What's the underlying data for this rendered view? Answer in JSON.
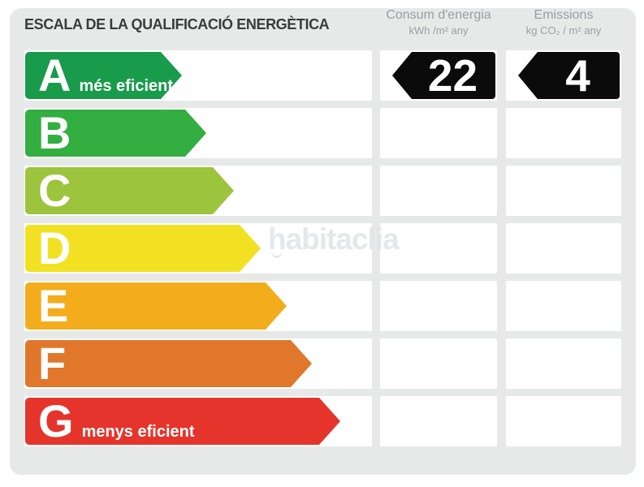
{
  "title": "ESCALA DE LA QUALIFICACIÓ ENERGÈTICA",
  "columns": {
    "consum": {
      "title": "Consum d'energia",
      "unit": "kWh /m²  any"
    },
    "emissions": {
      "title": "Emissions",
      "unit": "kg CO₂ / m²  any"
    }
  },
  "ratings": [
    {
      "grade": "A",
      "label": "més eficient",
      "color": "#189B4A",
      "arrow_width": 193
    },
    {
      "grade": "B",
      "label": "",
      "color": "#33AE41",
      "arrow_width": 223
    },
    {
      "grade": "C",
      "label": "",
      "color": "#9CC43C",
      "arrow_width": 257
    },
    {
      "grade": "D",
      "label": "",
      "color": "#F1E122",
      "arrow_width": 290
    },
    {
      "grade": "E",
      "label": "",
      "color": "#F3AD1C",
      "arrow_width": 322
    },
    {
      "grade": "F",
      "label": "",
      "color": "#E0772B",
      "arrow_width": 353
    },
    {
      "grade": "G",
      "label": "menys eficient",
      "color": "#E5342B",
      "arrow_width": 388
    }
  ],
  "result": {
    "grade": "A",
    "row_index": 0,
    "consum_value": "22",
    "emissions_value": "4",
    "value_arrow_color": "#0b0b0b"
  },
  "watermark": "habitaclia",
  "theme": {
    "panel_bg": "#e7e9e9",
    "cell_bg": "#ffffff",
    "title_color": "#3b3b3c",
    "header_color": "#9b9da0"
  },
  "chart_data": {
    "type": "bar",
    "title": "ESCALA DE LA QUALIFICACIÓ ENERGÈTICA",
    "orientation": "horizontal",
    "categories": [
      "A",
      "B",
      "C",
      "D",
      "E",
      "F",
      "G"
    ],
    "bar_colors": [
      "#189B4A",
      "#33AE41",
      "#9CC43C",
      "#F1E122",
      "#F3AD1C",
      "#E0772B",
      "#E5342B"
    ],
    "bar_lengths_relative": [
      193,
      223,
      257,
      290,
      322,
      353,
      388
    ],
    "category_annotations": {
      "A": "més eficient",
      "G": "menys eficient"
    },
    "rated_grade": "A",
    "series": [
      {
        "name": "Consum d'energia (kWh /m² any)",
        "values": [
          22,
          null,
          null,
          null,
          null,
          null,
          null
        ]
      },
      {
        "name": "Emissions (kg CO₂ / m² any)",
        "values": [
          4,
          null,
          null,
          null,
          null,
          null,
          null
        ]
      }
    ],
    "legend_position": "top",
    "grid": false
  }
}
